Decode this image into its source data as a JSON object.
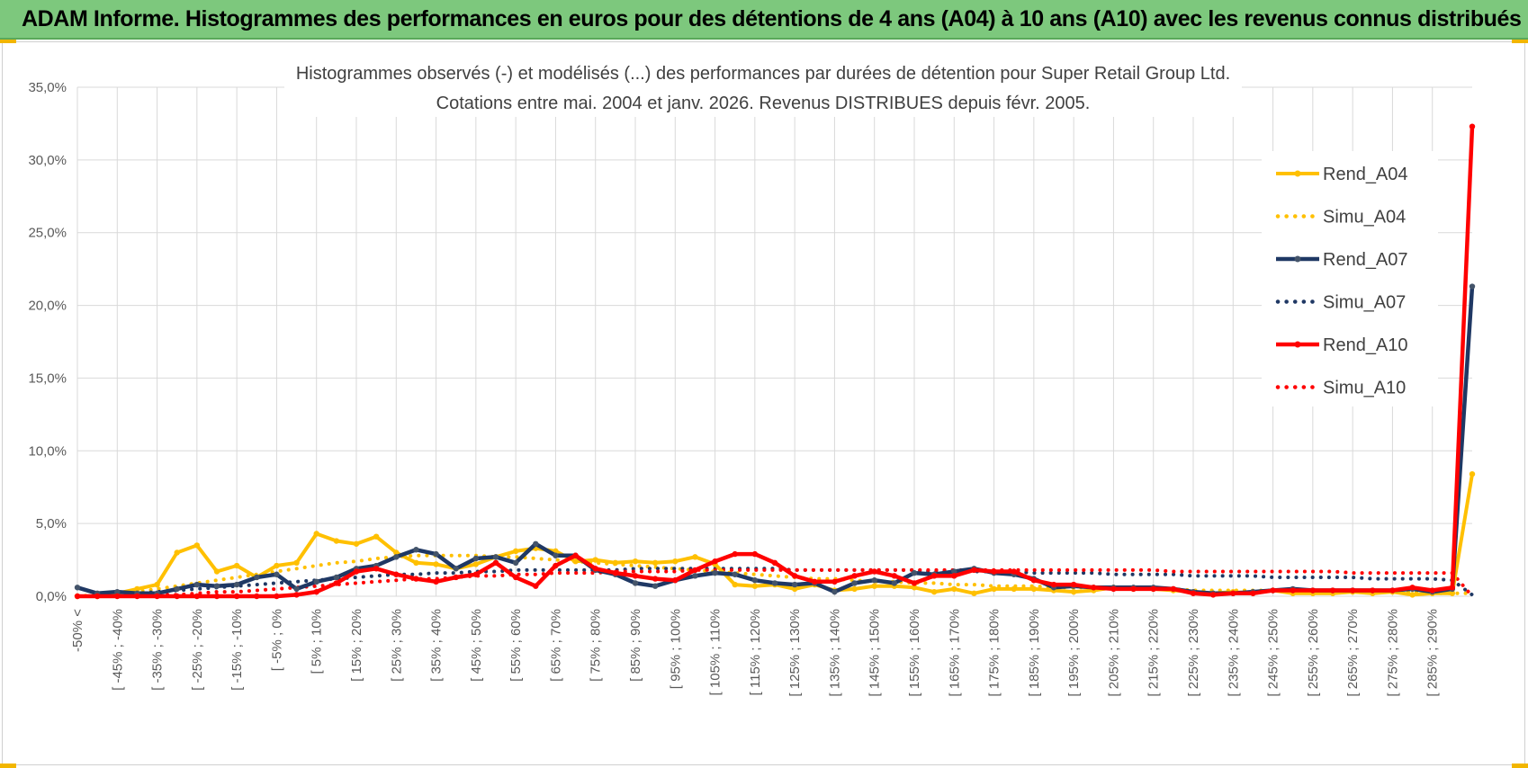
{
  "banner": {
    "title": "ADAM Informe. Histogrammes des performances en euros pour des détentions de 4 ans (A04) à 10 ans (A10) avec les revenus connus distribués"
  },
  "colors": {
    "banner_bg": "#7dc87d",
    "a04": "#ffc000",
    "a07": "#1f3864",
    "a07_marker": "#44546a",
    "a10": "#ff0000",
    "grid": "#d9d9d9"
  },
  "chart_data": {
    "type": "line",
    "title": "Histogrammes observés (-) et modélisés (...) des performances par durées de détention pour Super Retail Group Ltd.",
    "subtitle": "Cotations entre mai. 2004 et janv. 2026. Revenus DISTRIBUES depuis févr. 2005.",
    "xlabel": "",
    "ylabel": "",
    "ylim": [
      0,
      35
    ],
    "yticks": [
      "0,0%",
      "5,0%",
      "10,0%",
      "15,0%",
      "20,0%",
      "25,0%",
      "30,0%",
      "35,0%"
    ],
    "grid": true,
    "legend_position": "right",
    "categories": [
      "-50% <",
      "[ -50% ; -45%",
      "[ -45% ; -40%",
      "[ -40% ; -35%",
      "[ -35% ; -30%",
      "[ -30% ; -25%",
      "[ -25% ; -20%",
      "[ -20% ; -15%",
      "[ -15% ; -10%",
      "[ -10% ; -5%",
      "[ -5% ; 0%",
      "[ 0% ; 5%",
      "[ 5% ; 10%",
      "[ 10% ; 15%",
      "[ 15% ; 20%",
      "[ 20% ; 25%",
      "[ 25% ; 30%",
      "[ 30% ; 35%",
      "[ 35% ; 40%",
      "[ 40% ; 45%",
      "[ 45% ; 50%",
      "[ 50% ; 55%",
      "[ 55% ; 60%",
      "[ 60% ; 65%",
      "[ 65% ; 70%",
      "[ 70% ; 75%",
      "[ 75% ; 80%",
      "[ 80% ; 85%",
      "[ 85% ; 90%",
      "[ 90% ; 95%",
      "[ 95% ; 100%",
      "[ 100% ; 105%",
      "[ 105% ; 110%",
      "[ 110% ; 115%",
      "[ 115% ; 120%",
      "[ 120% ; 125%",
      "[ 125% ; 130%",
      "[ 130% ; 135%",
      "[ 135% ; 140%",
      "[ 140% ; 145%",
      "[ 145% ; 150%",
      "[ 150% ; 155%",
      "[ 155% ; 160%",
      "[ 160% ; 165%",
      "[ 165% ; 170%",
      "[ 170% ; 175%",
      "[ 175% ; 180%",
      "[ 180% ; 185%",
      "[ 185% ; 190%",
      "[ 190% ; 195%",
      "[ 195% ; 200%",
      "[ 200% ; 205%",
      "[ 205% ; 210%",
      "[ 210% ; 215%",
      "[ 215% ; 220%",
      "[ 220% ; 225%",
      "[ 225% ; 230%",
      "[ 230% ; 235%",
      "[ 235% ; 240%",
      "[ 240% ; 245%",
      "[ 245% ; 250%",
      "[ 250% ; 255%",
      "[ 255% ; 260%",
      "[ 260% ; 265%",
      "[ 265% ; 270%",
      "[ 270% ; 275%",
      "[ 275% ; 280%",
      "[ 280% ; 285%",
      "[ 285% ; 290%",
      "[ 290% ; 295%",
      "> 295%"
    ],
    "tick_labels": [
      "-50% <",
      "[ -45% ; -40%",
      "[ -35% ; -30%",
      "[ -25% ; -20%",
      "[ -15% ; -10%",
      "[ -5% ; 0%",
      "[ 5% ; 10%",
      "[ 15% ; 20%",
      "[ 25% ; 30%",
      "[ 35% ; 40%",
      "[ 45% ; 50%",
      "[ 55% ; 60%",
      "[ 65% ; 70%",
      "[ 75% ; 80%",
      "[ 85% ; 90%",
      "[ 95% ; 100%",
      "[ 105% ; 110%",
      "[ 115% ; 120%",
      "[ 125% ; 130%",
      "[ 135% ; 140%",
      "[ 145% ; 150%",
      "[ 155% ; 160%",
      "[ 165% ; 170%",
      "[ 175% ; 180%",
      "[ 185% ; 190%",
      "[ 195% ; 200%",
      "[ 205% ; 210%",
      "[ 215% ; 220%",
      "[ 225% ; 230%",
      "[ 235% ; 240%",
      "[ 245% ; 250%",
      "[ 255% ; 260%",
      "[ 265% ; 270%",
      "[ 275% ; 280%",
      "[ 285% ; 290%"
    ],
    "series": [
      {
        "name": "Rend_A04",
        "style": "solid",
        "color": "#ffc000",
        "values": [
          0.0,
          0.0,
          0.2,
          0.5,
          0.8,
          3.0,
          3.5,
          1.7,
          2.1,
          1.3,
          2.1,
          2.3,
          4.3,
          3.8,
          3.6,
          4.1,
          3.0,
          2.3,
          2.2,
          1.9,
          2.2,
          2.7,
          3.1,
          3.3,
          3.1,
          2.4,
          2.5,
          2.3,
          2.4,
          2.3,
          2.4,
          2.7,
          2.2,
          0.8,
          0.7,
          0.8,
          0.5,
          0.8,
          0.4,
          0.5,
          0.7,
          0.7,
          0.6,
          0.3,
          0.5,
          0.2,
          0.5,
          0.5,
          0.5,
          0.4,
          0.3,
          0.4,
          0.6,
          0.5,
          0.5,
          0.4,
          0.3,
          0.2,
          0.3,
          0.2,
          0.4,
          0.2,
          0.2,
          0.2,
          0.3,
          0.2,
          0.3,
          0.1,
          0.2,
          0.2,
          8.4
        ]
      },
      {
        "name": "Simu_A04",
        "style": "dotted",
        "color": "#ffc000",
        "values": [
          0.0,
          0.1,
          0.2,
          0.3,
          0.5,
          0.7,
          0.9,
          1.1,
          1.3,
          1.5,
          1.7,
          1.9,
          2.1,
          2.3,
          2.4,
          2.6,
          2.7,
          2.8,
          2.8,
          2.8,
          2.8,
          2.7,
          2.7,
          2.6,
          2.5,
          2.4,
          2.3,
          2.2,
          2.1,
          2.0,
          1.9,
          1.8,
          1.7,
          1.6,
          1.5,
          1.4,
          1.3,
          1.2,
          1.2,
          1.1,
          1.0,
          1.0,
          0.9,
          0.9,
          0.8,
          0.8,
          0.7,
          0.7,
          0.7,
          0.6,
          0.6,
          0.6,
          0.5,
          0.5,
          0.5,
          0.5,
          0.4,
          0.4,
          0.4,
          0.4,
          0.4,
          0.3,
          0.3,
          0.3,
          0.3,
          0.3,
          0.3,
          0.3,
          0.2,
          0.2,
          0.2
        ]
      },
      {
        "name": "Rend_A07",
        "style": "solid",
        "color": "#1f3864",
        "values": [
          0.6,
          0.2,
          0.3,
          0.2,
          0.2,
          0.5,
          0.8,
          0.7,
          0.8,
          1.3,
          1.5,
          0.5,
          1.0,
          1.3,
          1.9,
          2.1,
          2.7,
          3.2,
          2.9,
          1.9,
          2.6,
          2.7,
          2.3,
          3.6,
          2.8,
          2.8,
          1.8,
          1.5,
          0.9,
          0.7,
          1.1,
          1.4,
          1.6,
          1.5,
          1.1,
          0.9,
          0.8,
          0.9,
          0.3,
          0.9,
          1.1,
          0.9,
          1.6,
          1.5,
          1.7,
          1.9,
          1.6,
          1.5,
          1.2,
          0.6,
          0.7,
          0.6,
          0.6,
          0.6,
          0.6,
          0.5,
          0.3,
          0.2,
          0.2,
          0.3,
          0.4,
          0.5,
          0.4,
          0.4,
          0.4,
          0.4,
          0.4,
          0.5,
          0.3,
          0.5,
          21.3
        ]
      },
      {
        "name": "Simu_A07",
        "style": "dotted",
        "color": "#1f3864",
        "values": [
          0.0,
          0.0,
          0.1,
          0.2,
          0.3,
          0.4,
          0.5,
          0.6,
          0.7,
          0.8,
          0.9,
          1.0,
          1.1,
          1.2,
          1.3,
          1.4,
          1.5,
          1.5,
          1.6,
          1.6,
          1.7,
          1.7,
          1.8,
          1.8,
          1.8,
          1.8,
          1.8,
          1.8,
          1.9,
          1.9,
          1.9,
          1.9,
          1.9,
          1.9,
          1.9,
          1.9,
          1.8,
          1.8,
          1.8,
          1.8,
          1.8,
          1.8,
          1.8,
          1.7,
          1.7,
          1.7,
          1.7,
          1.7,
          1.6,
          1.6,
          1.6,
          1.6,
          1.5,
          1.5,
          1.5,
          1.5,
          1.4,
          1.4,
          1.4,
          1.4,
          1.3,
          1.3,
          1.3,
          1.3,
          1.3,
          1.2,
          1.2,
          1.2,
          1.2,
          1.1,
          0.1
        ]
      },
      {
        "name": "Rend_A10",
        "style": "solid",
        "color": "#ff0000",
        "values": [
          0.0,
          0.0,
          0.0,
          0.0,
          0.0,
          0.0,
          0.0,
          0.0,
          0.0,
          0.0,
          0.0,
          0.1,
          0.3,
          0.9,
          1.7,
          1.9,
          1.5,
          1.2,
          1.0,
          1.3,
          1.5,
          2.3,
          1.3,
          0.7,
          2.1,
          2.8,
          1.9,
          1.6,
          1.4,
          1.2,
          1.1,
          1.8,
          2.4,
          2.9,
          2.9,
          2.3,
          1.4,
          1.0,
          1.0,
          1.4,
          1.7,
          1.4,
          0.9,
          1.4,
          1.4,
          1.8,
          1.7,
          1.7,
          1.1,
          0.8,
          0.8,
          0.6,
          0.5,
          0.5,
          0.5,
          0.5,
          0.2,
          0.1,
          0.2,
          0.2,
          0.4,
          0.4,
          0.4,
          0.4,
          0.4,
          0.4,
          0.4,
          0.6,
          0.4,
          0.6,
          32.3
        ]
      },
      {
        "name": "Simu_A10",
        "style": "dotted",
        "color": "#ff0000",
        "values": [
          0.0,
          0.0,
          0.0,
          0.0,
          0.1,
          0.1,
          0.2,
          0.3,
          0.3,
          0.4,
          0.5,
          0.6,
          0.7,
          0.8,
          0.9,
          1.0,
          1.1,
          1.2,
          1.2,
          1.3,
          1.4,
          1.4,
          1.5,
          1.5,
          1.6,
          1.6,
          1.6,
          1.7,
          1.7,
          1.7,
          1.7,
          1.8,
          1.8,
          1.8,
          1.8,
          1.8,
          1.8,
          1.8,
          1.8,
          1.8,
          1.8,
          1.8,
          1.8,
          1.8,
          1.8,
          1.8,
          1.8,
          1.8,
          1.8,
          1.8,
          1.8,
          1.8,
          1.8,
          1.8,
          1.8,
          1.7,
          1.7,
          1.7,
          1.7,
          1.7,
          1.7,
          1.7,
          1.7,
          1.7,
          1.6,
          1.6,
          1.6,
          1.6,
          1.6,
          1.6,
          0.0
        ]
      }
    ]
  }
}
